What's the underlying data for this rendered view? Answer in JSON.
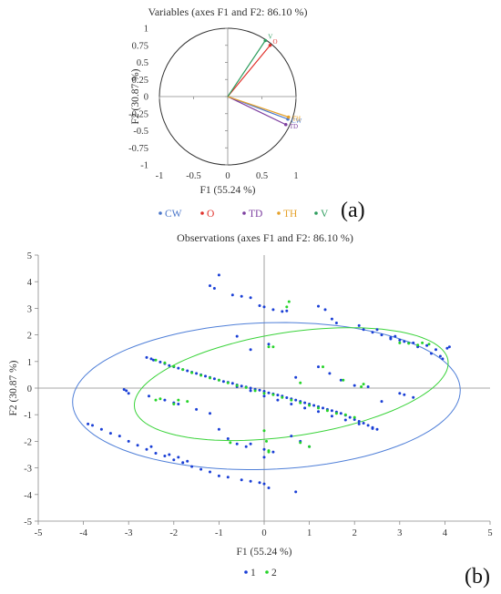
{
  "chart_data": [
    {
      "type": "scatter",
      "subtype": "correlation-circle",
      "panel_label": "(a)",
      "title": "Variables (axes F1 and F2: 86.10 %)",
      "xlabel": "F1 (55.24 %)",
      "ylabel": "F2 (30.87 %)",
      "xlim": [
        -1,
        1
      ],
      "ylim": [
        -1,
        1
      ],
      "xticks": [
        "-1",
        "-0.5",
        "0",
        "0.5",
        "1"
      ],
      "yticks": [
        "1",
        "0.75",
        "0.5",
        "0.25",
        "0",
        "-0.25",
        "-0.5",
        "-0.75",
        "-1"
      ],
      "grid": false,
      "legend_position": "bottom",
      "vectors": [
        {
          "name": "CW",
          "x": 0.88,
          "y": -0.33,
          "color": "#4a76c9"
        },
        {
          "name": "O",
          "x": 0.62,
          "y": 0.75,
          "color": "#e0322c"
        },
        {
          "name": "TD",
          "x": 0.85,
          "y": -0.41,
          "color": "#7d3fa0"
        },
        {
          "name": "TH",
          "x": 0.89,
          "y": -0.3,
          "color": "#e5a12a"
        },
        {
          "name": "V",
          "x": 0.55,
          "y": 0.82,
          "color": "#2e9d5e"
        }
      ]
    },
    {
      "type": "scatter",
      "panel_label": "(b)",
      "title": "Observations (axes F1 and F2: 86.10 %)",
      "xlabel": "F1 (55.24 %)",
      "ylabel": "F2 (30.87 %)",
      "xlim": [
        -5,
        5
      ],
      "ylim": [
        -5,
        5
      ],
      "xticks": [
        "-5",
        "-4",
        "-3",
        "-2",
        "-1",
        "0",
        "1",
        "2",
        "3",
        "4",
        "5"
      ],
      "yticks": [
        "5",
        "4",
        "3",
        "2",
        "1",
        "0",
        "-1",
        "-2",
        "-3",
        "-4",
        "-5"
      ],
      "grid": false,
      "legend_position": "bottom",
      "series": [
        {
          "name": "1",
          "color": "#1a3fd6",
          "points": [
            [
              -2.6,
              1.15
            ],
            [
              -2.45,
              1.05
            ],
            [
              -2.3,
              0.98
            ],
            [
              -2.1,
              0.85
            ],
            [
              -1.9,
              0.75
            ],
            [
              -1.7,
              0.65
            ],
            [
              -1.5,
              0.55
            ],
            [
              -1.3,
              0.45
            ],
            [
              -1.1,
              0.35
            ],
            [
              -0.9,
              0.25
            ],
            [
              -0.7,
              0.18
            ],
            [
              -0.5,
              0.08
            ],
            [
              -0.3,
              0.0
            ],
            [
              -0.1,
              -0.08
            ],
            [
              0.1,
              -0.18
            ],
            [
              0.3,
              -0.26
            ],
            [
              0.5,
              -0.36
            ],
            [
              0.7,
              -0.45
            ],
            [
              0.9,
              -0.55
            ],
            [
              1.1,
              -0.65
            ],
            [
              1.3,
              -0.75
            ],
            [
              1.5,
              -0.85
            ],
            [
              1.7,
              -0.95
            ],
            [
              1.9,
              -1.1
            ],
            [
              2.1,
              -1.25
            ],
            [
              2.3,
              -1.4
            ],
            [
              2.5,
              -1.55
            ],
            [
              -2.5,
              1.1
            ],
            [
              -2.2,
              0.92
            ],
            [
              -2.0,
              0.8
            ],
            [
              -1.8,
              0.7
            ],
            [
              -1.6,
              0.6
            ],
            [
              -1.4,
              0.5
            ],
            [
              -1.2,
              0.4
            ],
            [
              -1.0,
              0.3
            ],
            [
              -0.8,
              0.22
            ],
            [
              -0.6,
              0.12
            ],
            [
              -0.4,
              0.04
            ],
            [
              -0.2,
              -0.04
            ],
            [
              0.0,
              -0.12
            ],
            [
              0.2,
              -0.22
            ],
            [
              0.4,
              -0.3
            ],
            [
              0.6,
              -0.4
            ],
            [
              0.8,
              -0.5
            ],
            [
              1.0,
              -0.6
            ],
            [
              1.2,
              -0.7
            ],
            [
              1.4,
              -0.8
            ],
            [
              1.6,
              -0.9
            ],
            [
              1.8,
              -1.02
            ],
            [
              2.0,
              -1.18
            ],
            [
              2.2,
              -1.32
            ],
            [
              2.4,
              -1.48
            ],
            [
              -0.6,
              0.05
            ],
            [
              -0.3,
              -0.1
            ],
            [
              0.0,
              -0.3
            ],
            [
              0.3,
              -0.45
            ],
            [
              0.6,
              -0.6
            ],
            [
              0.9,
              -0.75
            ],
            [
              1.2,
              -0.88
            ],
            [
              1.5,
              -1.05
            ],
            [
              1.8,
              -1.2
            ],
            [
              2.1,
              -1.35
            ],
            [
              2.4,
              -1.52
            ],
            [
              -1.0,
              4.25
            ],
            [
              -1.2,
              3.85
            ],
            [
              -1.1,
              3.75
            ],
            [
              -0.7,
              3.5
            ],
            [
              -0.5,
              3.45
            ],
            [
              -0.3,
              3.4
            ],
            [
              -0.1,
              3.1
            ],
            [
              0.0,
              3.05
            ],
            [
              0.2,
              2.95
            ],
            [
              0.4,
              2.88
            ],
            [
              0.5,
              2.9
            ],
            [
              1.2,
              3.08
            ],
            [
              1.35,
              2.95
            ],
            [
              1.5,
              2.6
            ],
            [
              1.6,
              2.45
            ],
            [
              2.1,
              2.35
            ],
            [
              2.5,
              2.2
            ],
            [
              2.8,
              1.85
            ],
            [
              2.9,
              1.95
            ],
            [
              3.1,
              1.75
            ],
            [
              3.3,
              1.7
            ],
            [
              3.6,
              1.6
            ],
            [
              3.8,
              1.45
            ],
            [
              3.9,
              1.2
            ],
            [
              4.05,
              1.5
            ],
            [
              4.1,
              1.55
            ],
            [
              3.95,
              1.1
            ],
            [
              2.2,
              2.2
            ],
            [
              2.4,
              2.1
            ],
            [
              2.6,
              2.0
            ],
            [
              2.8,
              1.9
            ],
            [
              3.0,
              1.8
            ],
            [
              3.2,
              1.7
            ],
            [
              3.4,
              1.55
            ],
            [
              3.7,
              1.3
            ],
            [
              -0.6,
              1.95
            ],
            [
              -0.3,
              1.45
            ],
            [
              0.1,
              1.65
            ],
            [
              0.7,
              0.4
            ],
            [
              1.2,
              0.8
            ],
            [
              1.45,
              0.55
            ],
            [
              1.7,
              0.3
            ],
            [
              2.0,
              0.1
            ],
            [
              2.3,
              0.05
            ],
            [
              3.0,
              -0.2
            ],
            [
              3.1,
              -0.25
            ],
            [
              3.3,
              -0.35
            ],
            [
              2.6,
              -0.5
            ],
            [
              -3.1,
              -0.05
            ],
            [
              -3.05,
              -0.1
            ],
            [
              -3.0,
              -0.2
            ],
            [
              -2.55,
              -0.3
            ],
            [
              -2.2,
              -0.45
            ],
            [
              -2.0,
              -0.55
            ],
            [
              -1.9,
              -0.6
            ],
            [
              -1.5,
              -0.8
            ],
            [
              -1.2,
              -0.95
            ],
            [
              -3.9,
              -1.35
            ],
            [
              -3.8,
              -1.4
            ],
            [
              -3.6,
              -1.55
            ],
            [
              -3.4,
              -1.7
            ],
            [
              -3.2,
              -1.8
            ],
            [
              -3.0,
              -2.0
            ],
            [
              -2.8,
              -2.15
            ],
            [
              -2.6,
              -2.3
            ],
            [
              -2.4,
              -2.45
            ],
            [
              -2.2,
              -2.55
            ],
            [
              -2.0,
              -2.7
            ],
            [
              -1.8,
              -2.8
            ],
            [
              -1.6,
              -2.95
            ],
            [
              -1.4,
              -3.05
            ],
            [
              -1.2,
              -3.15
            ],
            [
              -1.0,
              -3.3
            ],
            [
              -0.8,
              -3.35
            ],
            [
              -0.5,
              -3.45
            ],
            [
              -0.3,
              -3.5
            ],
            [
              -0.1,
              -3.55
            ],
            [
              -2.5,
              -2.2
            ],
            [
              -2.1,
              -2.5
            ],
            [
              -1.9,
              -2.6
            ],
            [
              -1.7,
              -2.75
            ],
            [
              -1.0,
              -1.55
            ],
            [
              -0.8,
              -1.9
            ],
            [
              -0.6,
              -2.1
            ],
            [
              -0.4,
              -2.2
            ],
            [
              0.6,
              -1.8
            ],
            [
              0.8,
              -2.0
            ],
            [
              1.0,
              -2.2
            ],
            [
              -0.3,
              -2.1
            ],
            [
              0.0,
              -2.3
            ],
            [
              0.2,
              -2.4
            ],
            [
              0.0,
              -3.6
            ],
            [
              0.7,
              -3.9
            ],
            [
              0.1,
              -3.75
            ],
            [
              0.0,
              -2.6
            ]
          ]
        },
        {
          "name": "2",
          "color": "#26d42a",
          "points": [
            [
              -2.4,
              1.05
            ],
            [
              -2.0,
              0.82
            ],
            [
              -1.6,
              0.58
            ],
            [
              -1.2,
              0.38
            ],
            [
              -0.8,
              0.2
            ],
            [
              -0.4,
              0.02
            ],
            [
              0.0,
              -0.2
            ],
            [
              0.4,
              -0.35
            ],
            [
              0.8,
              -0.55
            ],
            [
              1.2,
              -0.75
            ],
            [
              1.6,
              -0.95
            ],
            [
              2.0,
              -1.1
            ],
            [
              -2.2,
              0.95
            ],
            [
              -1.8,
              0.7
            ],
            [
              -1.4,
              0.48
            ],
            [
              -1.0,
              0.3
            ],
            [
              -0.6,
              0.1
            ],
            [
              -0.2,
              -0.1
            ],
            [
              0.2,
              -0.25
            ],
            [
              0.6,
              -0.45
            ],
            [
              1.0,
              -0.65
            ],
            [
              1.4,
              -0.85
            ],
            [
              1.8,
              -1.0
            ],
            [
              0.5,
              3.05
            ],
            [
              0.55,
              3.25
            ],
            [
              3.0,
              1.7
            ],
            [
              3.2,
              1.68
            ],
            [
              3.4,
              1.62
            ],
            [
              3.5,
              1.7
            ],
            [
              3.65,
              1.65
            ],
            [
              0.1,
              1.55
            ],
            [
              0.2,
              1.55
            ],
            [
              1.3,
              0.8
            ],
            [
              1.75,
              0.3
            ],
            [
              0.8,
              0.2
            ],
            [
              2.15,
              0.05
            ],
            [
              2.2,
              0.15
            ],
            [
              -1.7,
              -0.5
            ],
            [
              -1.9,
              -0.45
            ],
            [
              -2.0,
              -0.6
            ],
            [
              -2.4,
              -0.45
            ],
            [
              -2.3,
              -0.4
            ],
            [
              -0.75,
              -2.05
            ],
            [
              0.0,
              -1.6
            ],
            [
              0.05,
              -2.0
            ],
            [
              0.1,
              -2.35
            ],
            [
              0.1,
              -2.4
            ],
            [
              0.8,
              -2.05
            ],
            [
              1.0,
              -2.2
            ]
          ]
        }
      ],
      "ellipses": [
        {
          "series": "1",
          "cx": 0.05,
          "cy": -0.3,
          "rx": 4.3,
          "ry": 2.75,
          "angle_deg": 5,
          "color": "#4f7fd8"
        },
        {
          "series": "2",
          "cx": 0.6,
          "cy": 0.15,
          "rx": 3.6,
          "ry": 1.9,
          "angle_deg": 18,
          "color": "#3ad33a"
        }
      ]
    }
  ]
}
